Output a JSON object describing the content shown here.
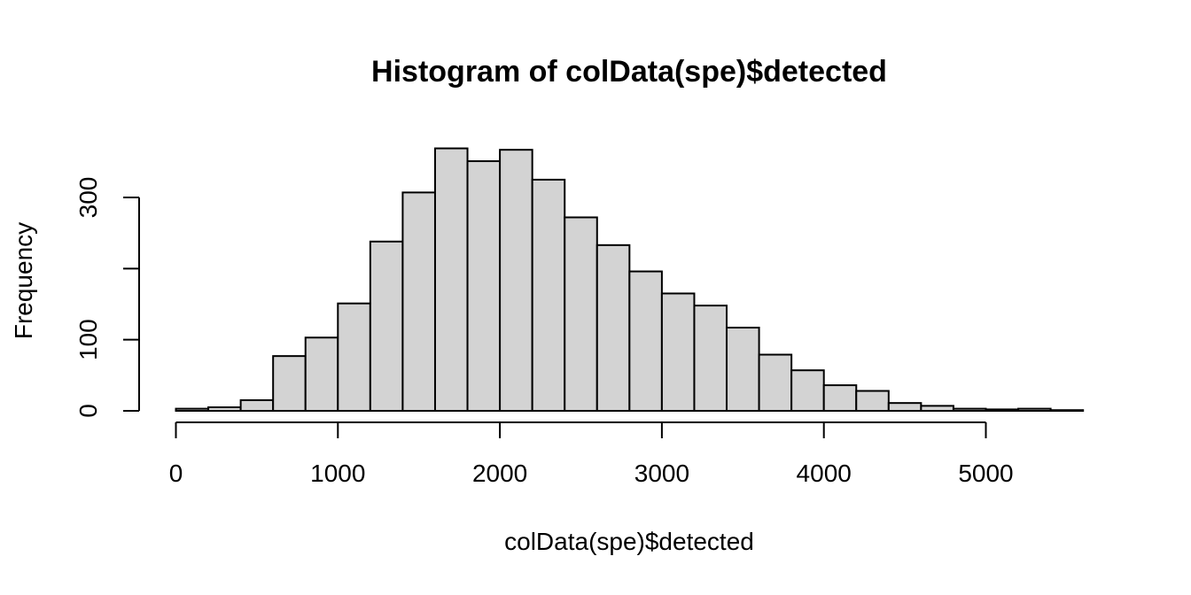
{
  "chart_data": {
    "type": "bar",
    "title": "Histogram of colData(spe)$detected",
    "xlabel": "colData(spe)$detected",
    "ylabel": "Frequency",
    "bin_width": 200,
    "bin_starts": [
      0,
      200,
      400,
      600,
      800,
      1000,
      1200,
      1400,
      1600,
      1800,
      2000,
      2200,
      2400,
      2600,
      2800,
      3000,
      3200,
      3400,
      3600,
      3800,
      4000,
      4200,
      4400,
      4600,
      4800,
      5000,
      5200,
      5400
    ],
    "values": [
      3,
      5,
      15,
      77,
      103,
      151,
      238,
      307,
      369,
      351,
      367,
      325,
      272,
      233,
      196,
      165,
      148,
      117,
      79,
      57,
      36,
      28,
      11,
      7,
      3,
      2,
      3,
      1
    ],
    "xlim": [
      0,
      5600
    ],
    "ylim": [
      0,
      370
    ],
    "x_ticks": [
      0,
      1000,
      2000,
      3000,
      4000,
      5000
    ],
    "x_tick_labels": [
      "0",
      "1000",
      "2000",
      "3000",
      "4000",
      "5000"
    ],
    "y_ticks": [
      0,
      100,
      200,
      300
    ],
    "y_tick_labels": [
      "0",
      "100",
      "",
      "300"
    ],
    "bar_fill": "#d3d3d3",
    "bar_stroke": "#000000",
    "grid": false,
    "legend": "none"
  }
}
